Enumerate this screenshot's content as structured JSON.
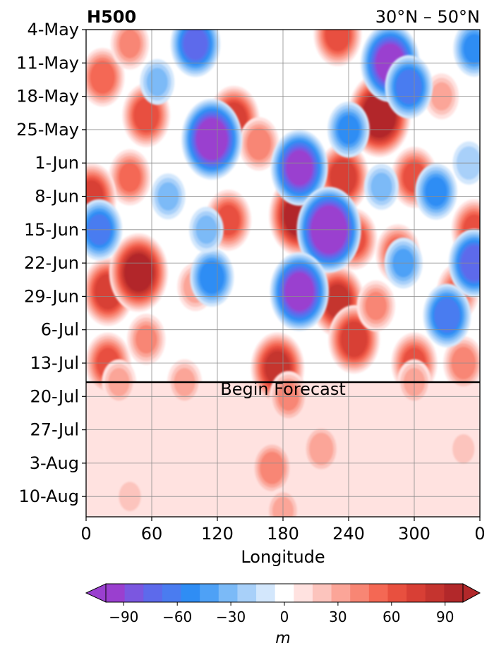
{
  "chart_data": {
    "type": "heatmap",
    "title_left": "H500",
    "title_right": "30°N – 50°N",
    "xlabel": "Longitude",
    "x_ticks": [
      "0",
      "60",
      "120",
      "180",
      "240",
      "300",
      "0"
    ],
    "y_ticks": [
      "4-May",
      "11-May",
      "18-May",
      "25-May",
      "1-Jun",
      "8-Jun",
      "15-Jun",
      "22-Jun",
      "29-Jun",
      "6-Jul",
      "13-Jul",
      "20-Jul",
      "27-Jul",
      "3-Aug",
      "10-Aug"
    ],
    "annotation": "Begin Forecast",
    "forecast_start": "17-Jul",
    "colorbar": {
      "unit": "m",
      "ticks": [
        "−90",
        "−60",
        "−30",
        "0",
        "30",
        "60",
        "90"
      ],
      "range": [
        -105,
        105
      ],
      "step": 10,
      "extend": "both",
      "colors_negative": [
        "#9a3fcf",
        "#7b57e0",
        "#5d6aeb",
        "#4a7cf0",
        "#2f8df4",
        "#4ea1f6",
        "#7bbaf7",
        "#a8d0f9",
        "#d3e7fc",
        "#ffffff"
      ],
      "colors_positive": [
        "#ffffff",
        "#ffe2e0",
        "#fcc4bd",
        "#fba598",
        "#f88674",
        "#f46854",
        "#e8503f",
        "#d83f35",
        "#c5342f",
        "#b2282a"
      ]
    },
    "features": [
      {
        "lon": 15,
        "date": "14-May",
        "value": 55
      },
      {
        "lon": 55,
        "date": "22-May",
        "value": 65
      },
      {
        "lon": 40,
        "date": "4-Jun",
        "value": 50
      },
      {
        "lon": 5,
        "date": "8-Jun",
        "value": 70
      },
      {
        "lon": 20,
        "date": "28-Jun",
        "value": 75
      },
      {
        "lon": 48,
        "date": "24-Jun",
        "value": 95
      },
      {
        "lon": 20,
        "date": "13-Jul",
        "value": 60
      },
      {
        "lon": 55,
        "date": "8-Jul",
        "value": 40
      },
      {
        "lon": 135,
        "date": "23-May",
        "value": 75
      },
      {
        "lon": 158,
        "date": "28-May",
        "value": 45
      },
      {
        "lon": 130,
        "date": "13-Jun",
        "value": 60
      },
      {
        "lon": 100,
        "date": "27-Jun",
        "value": 35
      },
      {
        "lon": 175,
        "date": "14-Jul",
        "value": 80
      },
      {
        "lon": 195,
        "date": "12-Jun",
        "value": 100
      },
      {
        "lon": 235,
        "date": "4-Jun",
        "value": 75
      },
      {
        "lon": 230,
        "date": "30-Jun",
        "value": 80
      },
      {
        "lon": 245,
        "date": "17-Jun",
        "value": 60
      },
      {
        "lon": 245,
        "date": "8-Jul",
        "value": 75
      },
      {
        "lon": 230,
        "date": "5-May",
        "value": 65
      },
      {
        "lon": 268,
        "date": "22-May",
        "value": 105
      },
      {
        "lon": 300,
        "date": "4-Jun",
        "value": 60
      },
      {
        "lon": 285,
        "date": "20-Jun",
        "value": 55
      },
      {
        "lon": 355,
        "date": "15-Jun",
        "value": 60
      },
      {
        "lon": 340,
        "date": "28-Jun",
        "value": 50
      },
      {
        "lon": 300,
        "date": "13-Jul",
        "value": 60
      },
      {
        "lon": 345,
        "date": "13-Jul",
        "value": 45
      },
      {
        "lon": 265,
        "date": "1-Jul",
        "value": 40
      },
      {
        "lon": 325,
        "date": "18-May",
        "value": 30
      },
      {
        "lon": 40,
        "date": "7-May",
        "value": 40
      },
      {
        "lon": 185,
        "date": "20-Jul",
        "value": 40
      },
      {
        "lon": 30,
        "date": "17-Jul",
        "value": 30
      },
      {
        "lon": 90,
        "date": "17-Jul",
        "value": 30
      },
      {
        "lon": 300,
        "date": "17-Jul",
        "value": 30
      },
      {
        "lon": 170,
        "date": "4-Aug",
        "value": 45
      },
      {
        "lon": 215,
        "date": "31-Jul",
        "value": 35
      },
      {
        "lon": 345,
        "date": "31-Jul",
        "value": 20
      },
      {
        "lon": 40,
        "date": "10-Aug",
        "value": 20
      },
      {
        "lon": 180,
        "date": "13-Aug",
        "value": 30
      },
      {
        "lon": 115,
        "date": "27-May",
        "value": -100
      },
      {
        "lon": 195,
        "date": "2-Jun",
        "value": -90
      },
      {
        "lon": 222,
        "date": "15-Jun",
        "value": -110
      },
      {
        "lon": 195,
        "date": "28-Jun",
        "value": -95
      },
      {
        "lon": 278,
        "date": "11-May",
        "value": -95
      },
      {
        "lon": 295,
        "date": "16-May",
        "value": -65
      },
      {
        "lon": 100,
        "date": "7-May",
        "value": -70
      },
      {
        "lon": 355,
        "date": "22-Jun",
        "value": -75
      },
      {
        "lon": 330,
        "date": "3-Jul",
        "value": -65
      },
      {
        "lon": 320,
        "date": "7-Jun",
        "value": -50
      },
      {
        "lon": 12,
        "date": "15-Jun",
        "value": -60
      },
      {
        "lon": 65,
        "date": "15-May",
        "value": -30
      },
      {
        "lon": 75,
        "date": "8-Jun",
        "value": -30
      },
      {
        "lon": 115,
        "date": "25-Jun",
        "value": -55
      },
      {
        "lon": 110,
        "date": "15-Jun",
        "value": -30
      },
      {
        "lon": 240,
        "date": "25-May",
        "value": -50
      },
      {
        "lon": 355,
        "date": "8-May",
        "value": -50
      },
      {
        "lon": 350,
        "date": "1-Jun",
        "value": -25
      },
      {
        "lon": 270,
        "date": "6-Jun",
        "value": -30
      },
      {
        "lon": 290,
        "date": "22-Jun",
        "value": -40
      }
    ]
  }
}
